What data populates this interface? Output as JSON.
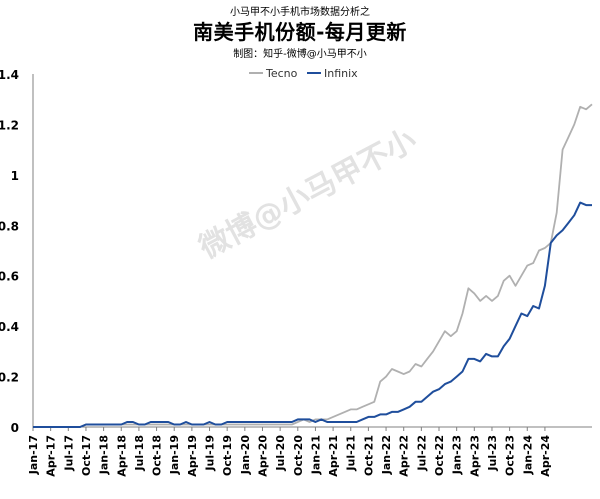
{
  "header": {
    "supertitle": "小马甲不小手机市场数据分析之",
    "title": "南美手机份额-每月更新",
    "subtitle": "制图：知乎-微博@小马甲不小"
  },
  "watermark": "微博@小马甲不小",
  "colors": {
    "Tecno": "#b0b0b0",
    "Infinix": "#1f4e9c"
  },
  "chart_data": {
    "type": "line",
    "title": "南美手机份额-每月更新",
    "xlabel": "",
    "ylabel": "",
    "ylim": [
      0,
      1.4
    ],
    "yticks": [
      "0",
      "0.2",
      "0.4",
      "0.6",
      "0.8",
      "1",
      "1.2",
      "1.4"
    ],
    "grid": false,
    "legend": "top-center",
    "x_tick_labels": [
      "Jan-17",
      "Apr-17",
      "Jul-17",
      "Oct-17",
      "Jan-18",
      "Apr-18",
      "Jul-18",
      "Oct-18",
      "Jan-19",
      "Apr-19",
      "Jul-19",
      "Oct-19",
      "Jan-20",
      "Apr-20",
      "Jul-20",
      "Oct-20",
      "Jan-21",
      "Apr-21",
      "Jul-21",
      "Oct-21",
      "Jan-22",
      "Apr-22",
      "Jul-22",
      "Oct-22",
      "Jan-23",
      "Apr-23",
      "Jul-23",
      "Oct-23",
      "Jan-24",
      "Apr-24"
    ],
    "series": [
      {
        "name": "Tecno",
        "values": [
          0,
          0,
          0,
          0,
          0,
          0,
          0,
          0,
          0,
          0.01,
          0.01,
          0.01,
          0.01,
          0.01,
          0.01,
          0.01,
          0.01,
          0.01,
          0.01,
          0.01,
          0.01,
          0.01,
          0.01,
          0.01,
          0.01,
          0.01,
          0.01,
          0.01,
          0.01,
          0.01,
          0.01,
          0.01,
          0.01,
          0.01,
          0.01,
          0.01,
          0.01,
          0.01,
          0.01,
          0.01,
          0.01,
          0.01,
          0.01,
          0.01,
          0.01,
          0.02,
          0.03,
          0.02,
          0.03,
          0.03,
          0.03,
          0.04,
          0.05,
          0.06,
          0.07,
          0.07,
          0.08,
          0.09,
          0.1,
          0.18,
          0.2,
          0.23,
          0.22,
          0.21,
          0.22,
          0.25,
          0.24,
          0.27,
          0.3,
          0.34,
          0.38,
          0.36,
          0.38,
          0.45,
          0.55,
          0.53,
          0.5,
          0.52,
          0.5,
          0.52,
          0.58,
          0.6,
          0.56,
          0.6,
          0.64,
          0.65,
          0.7,
          0.71,
          0.73,
          0.85,
          1.1,
          1.15,
          1.2,
          1.27,
          1.26,
          1.28
        ]
      },
      {
        "name": "Infinix",
        "values": [
          0,
          0,
          0,
          0,
          0,
          0,
          0,
          0,
          0,
          0.01,
          0.01,
          0.01,
          0.01,
          0.01,
          0.01,
          0.01,
          0.02,
          0.02,
          0.01,
          0.01,
          0.02,
          0.02,
          0.02,
          0.02,
          0.01,
          0.01,
          0.02,
          0.01,
          0.01,
          0.01,
          0.02,
          0.01,
          0.01,
          0.02,
          0.02,
          0.02,
          0.02,
          0.02,
          0.02,
          0.02,
          0.02,
          0.02,
          0.02,
          0.02,
          0.02,
          0.03,
          0.03,
          0.03,
          0.02,
          0.03,
          0.02,
          0.02,
          0.02,
          0.02,
          0.02,
          0.02,
          0.03,
          0.04,
          0.04,
          0.05,
          0.05,
          0.06,
          0.06,
          0.07,
          0.08,
          0.1,
          0.1,
          0.12,
          0.14,
          0.15,
          0.17,
          0.18,
          0.2,
          0.22,
          0.27,
          0.27,
          0.26,
          0.29,
          0.28,
          0.28,
          0.32,
          0.35,
          0.4,
          0.45,
          0.44,
          0.48,
          0.47,
          0.56,
          0.73,
          0.76,
          0.78,
          0.81,
          0.84,
          0.89,
          0.88,
          0.88
        ]
      }
    ]
  }
}
